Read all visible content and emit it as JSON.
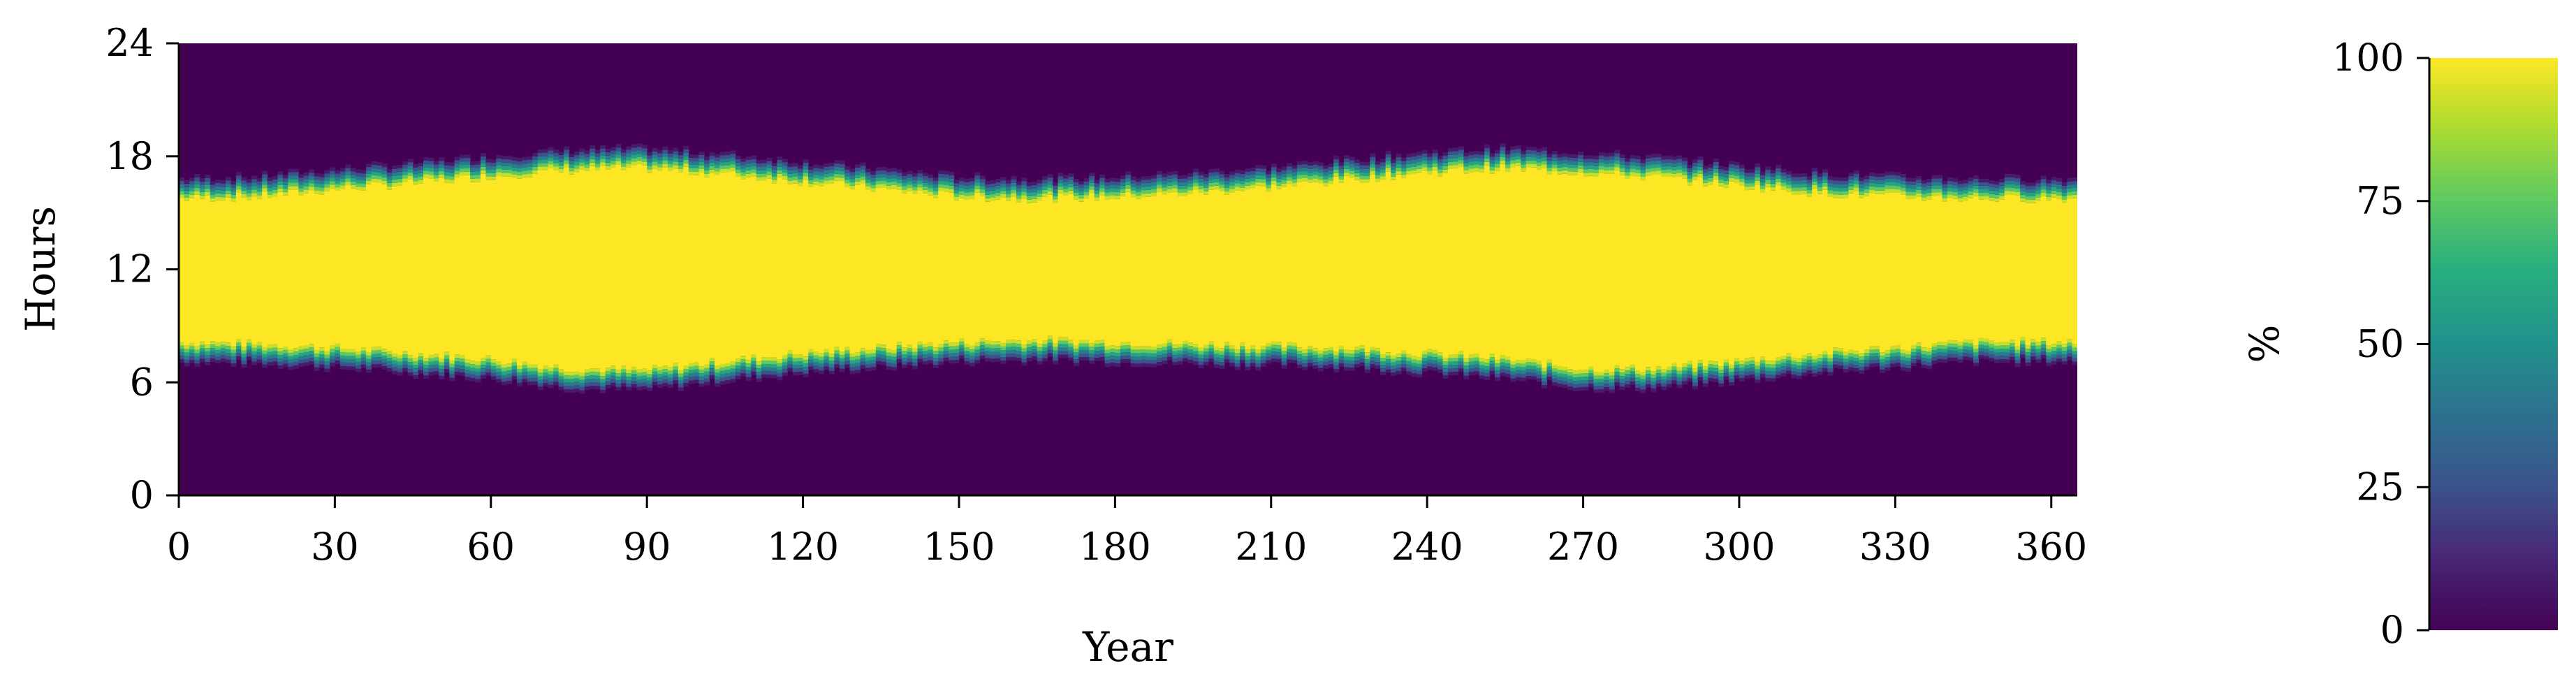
{
  "chart_data": {
    "type": "heatmap",
    "title": "",
    "xlabel": "Year",
    "ylabel": "Hours",
    "xlim": [
      0,
      365
    ],
    "ylim": [
      0,
      24
    ],
    "xticks": [
      0,
      30,
      60,
      90,
      120,
      150,
      180,
      210,
      240,
      270,
      300,
      330,
      360
    ],
    "yticks": [
      0,
      6,
      12,
      18,
      24
    ],
    "colormap": "viridis",
    "colorbar": {
      "label": "%",
      "range": [
        0,
        100
      ],
      "ticks": [
        0,
        25,
        50,
        75,
        100
      ]
    },
    "grid": false,
    "description_of_values": {
      "night_value": 0,
      "day_value": 100
    },
    "daylight_profile": {
      "day": [
        0,
        15,
        30,
        45,
        60,
        75,
        90,
        105,
        120,
        135,
        150,
        165,
        180,
        195,
        210,
        225,
        240,
        255,
        270,
        285,
        300,
        315,
        330,
        345,
        365
      ],
      "sunrise_hour": [
        7.6,
        7.5,
        7.3,
        7.0,
        6.7,
        6.2,
        6.1,
        6.6,
        7.0,
        7.3,
        7.6,
        7.7,
        7.6,
        7.5,
        7.4,
        7.3,
        7.0,
        6.7,
        6.2,
        6.2,
        6.6,
        7.0,
        7.3,
        7.6,
        7.6
      ],
      "sunset_hour": [
        16.3,
        16.4,
        16.8,
        17.1,
        17.5,
        17.8,
        17.9,
        17.6,
        17.2,
        16.8,
        16.4,
        16.3,
        16.4,
        16.6,
        16.9,
        17.3,
        17.7,
        17.9,
        17.7,
        17.4,
        17.0,
        16.6,
        16.4,
        16.3,
        16.3
      ]
    },
    "colors": {
      "low": "#440154",
      "mid": "#21918c",
      "high": "#fde725"
    }
  }
}
